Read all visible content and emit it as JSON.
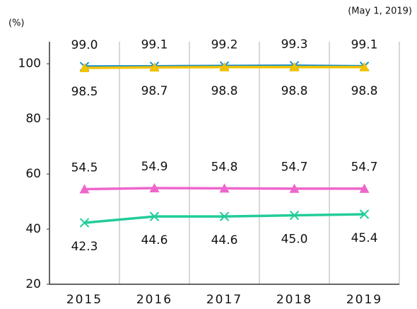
{
  "chart_data": {
    "type": "line",
    "annotations": [
      "(May 1, 2019)",
      "(%)"
    ],
    "categories": [
      "2015",
      "2016",
      "2017",
      "2018",
      "2019"
    ],
    "series": [
      {
        "color": "#1a8fc8",
        "marker": "x",
        "values": [
          99.0,
          99.1,
          99.2,
          99.3,
          99.1
        ],
        "value_labels": [
          "99.0",
          "99.1",
          "99.2",
          "99.3",
          "99.1"
        ]
      },
      {
        "color": "#f2c200",
        "marker": "triangle",
        "values": [
          98.5,
          98.7,
          98.8,
          98.8,
          98.8
        ],
        "value_labels": [
          "98.5",
          "98.7",
          "98.8",
          "98.8",
          "98.8"
        ]
      },
      {
        "color": "#ee66cc",
        "marker": "triangle",
        "values": [
          54.5,
          54.9,
          54.8,
          54.7,
          54.7
        ],
        "value_labels": [
          "54.5",
          "54.9",
          "54.8",
          "54.7",
          "54.7"
        ]
      },
      {
        "color": "#22cc99",
        "marker": "x",
        "values": [
          42.3,
          44.6,
          44.6,
          45.0,
          45.4
        ],
        "value_labels": [
          "42.3",
          "44.6",
          "44.6",
          "45.0",
          "45.4"
        ]
      }
    ],
    "ylim": [
      20,
      108
    ],
    "yticks": [
      20,
      40,
      60,
      80,
      100
    ],
    "grid": false
  }
}
